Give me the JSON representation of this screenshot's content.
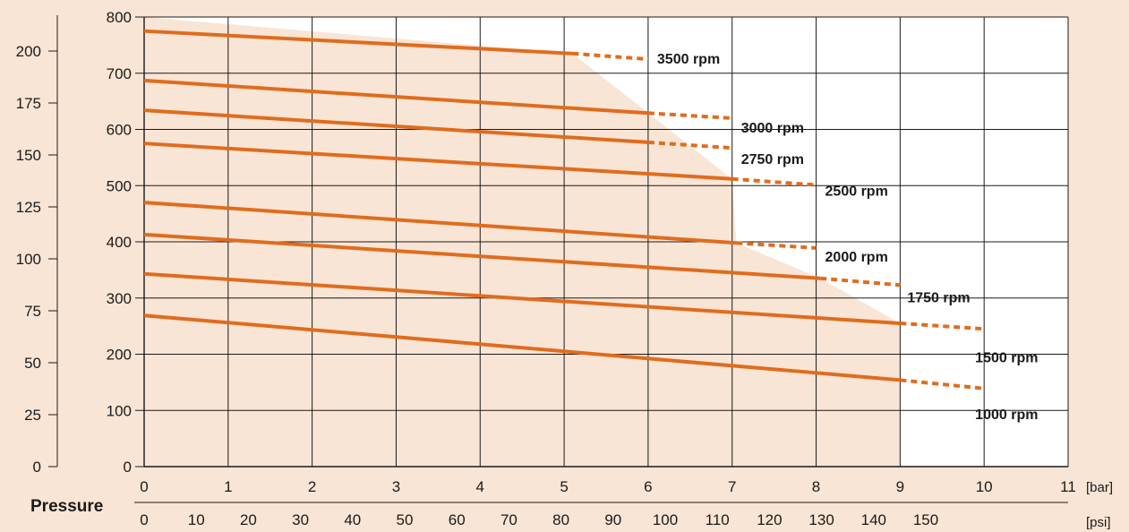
{
  "chart_data": {
    "type": "line",
    "x_primary": {
      "unit_label": "[bar]",
      "ticks": [
        "0",
        "1",
        "2",
        "3",
        "4",
        "5",
        "6",
        "7",
        "8",
        "9",
        "10",
        "11"
      ],
      "range": [
        0,
        11
      ]
    },
    "x_secondary": {
      "unit_label": "[psi]",
      "ticks": [
        "0",
        "10",
        "20",
        "30",
        "40",
        "50",
        "60",
        "70",
        "80",
        "90",
        "100",
        "110",
        "120",
        "130",
        "140",
        "150"
      ]
    },
    "xlabel": "Pressure",
    "y_primary": {
      "ticks": [
        "0",
        "100",
        "200",
        "300",
        "400",
        "500",
        "600",
        "700",
        "800"
      ],
      "range": [
        0,
        800
      ]
    },
    "y_secondary": {
      "ticks": [
        "0",
        "25",
        "50",
        "75",
        "100",
        "125",
        "150",
        "175",
        "200"
      ]
    },
    "shaded_region_boundary": [
      [
        0,
        800
      ],
      [
        5.1,
        735
      ],
      [
        7,
        512
      ],
      [
        7.05,
        398
      ],
      [
        8.05,
        335
      ],
      [
        9,
        255
      ],
      [
        9,
        0
      ]
    ],
    "series": [
      {
        "name": "3500 rpm",
        "solid": [
          [
            0,
            775
          ],
          [
            5.1,
            735
          ]
        ],
        "dashed": [
          [
            5.1,
            735
          ],
          [
            6,
            725
          ]
        ]
      },
      {
        "name": "3000 rpm",
        "solid": [
          [
            0,
            687
          ],
          [
            6,
            629
          ]
        ],
        "dashed": [
          [
            6,
            629
          ],
          [
            7,
            620
          ]
        ]
      },
      {
        "name": "2750 rpm",
        "solid": [
          [
            0,
            634
          ],
          [
            6,
            577
          ]
        ],
        "dashed": [
          [
            6,
            577
          ],
          [
            7,
            567
          ]
        ]
      },
      {
        "name": "2500 rpm",
        "solid": [
          [
            0,
            575
          ],
          [
            7,
            512
          ]
        ],
        "dashed": [
          [
            7,
            512
          ],
          [
            8,
            501
          ]
        ]
      },
      {
        "name": "2000 rpm",
        "solid": [
          [
            0,
            470
          ],
          [
            7.05,
            398
          ]
        ],
        "dashed": [
          [
            7.05,
            398
          ],
          [
            8,
            389
          ]
        ]
      },
      {
        "name": "1750 rpm",
        "solid": [
          [
            0,
            413
          ],
          [
            8.05,
            335
          ]
        ],
        "dashed": [
          [
            8.05,
            335
          ],
          [
            9,
            323
          ]
        ]
      },
      {
        "name": "1500 rpm",
        "solid": [
          [
            0,
            343
          ],
          [
            9,
            255
          ]
        ],
        "dashed": [
          [
            9,
            255
          ],
          [
            10,
            245
          ]
        ]
      },
      {
        "name": "1000 rpm",
        "solid": [
          [
            0,
            269
          ],
          [
            9,
            154
          ]
        ],
        "dashed": [
          [
            9,
            154
          ],
          [
            10,
            139
          ]
        ]
      }
    ],
    "grid": true
  },
  "colors": {
    "background": "#f9e5d5",
    "plot_area": "#ffffff",
    "curve": "#e06c1e",
    "grid": "#1a1a1a"
  }
}
